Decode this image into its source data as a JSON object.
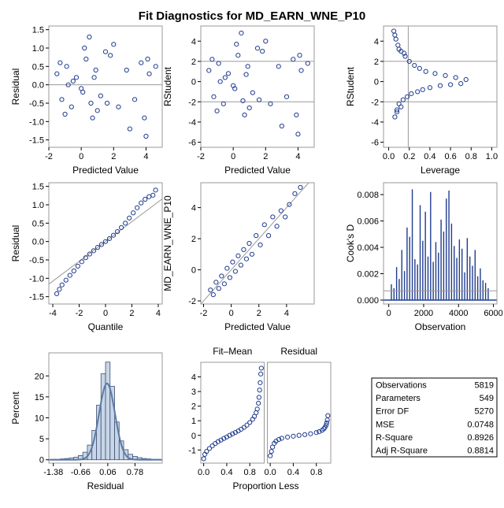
{
  "title": "Fit Diagnostics for MD_EARN_WNE_P10",
  "colors": {
    "marker": "#1f3c8f",
    "frame": "#9a9a9a",
    "bar": "#c9d6e8",
    "curve": "#5b7aa5"
  },
  "chart_data": [
    {
      "type": "scatter",
      "panel": "residual-vs-predicted",
      "xlabel": "Predicted Value",
      "ylabel": "Residual",
      "xlim": [
        -2,
        5
      ],
      "ylim": [
        -1.7,
        1.6
      ],
      "xticks": [
        -2,
        0,
        2,
        4
      ],
      "yticks": [
        -1.5,
        -1.0,
        -0.5,
        0.0,
        0.5,
        1.0,
        1.5
      ],
      "ytick_labels": [
        "-1.5",
        "-1.0",
        "-0.5",
        "0.0",
        "0.5",
        "1.0",
        "1.5"
      ],
      "reflines_y": [
        0
      ],
      "x": [
        -1.5,
        -1.2,
        -0.9,
        -0.6,
        -0.3,
        0.0,
        0.3,
        0.6,
        0.9,
        1.2,
        1.5,
        -1.0,
        -0.5,
        0.2,
        0.7,
        1.8,
        2.3,
        2.8,
        3.3,
        3.7,
        4.0,
        4.2,
        4.6,
        0.5,
        1.0,
        -0.8,
        0.1,
        2.0,
        3.0,
        3.9,
        4.1,
        -1.3,
        0.8,
        1.6
      ],
      "y": [
        0.3,
        -0.4,
        0.5,
        -0.6,
        0.2,
        -0.1,
        0.7,
        -0.5,
        0.4,
        -0.3,
        0.9,
        -0.8,
        0.1,
        1.0,
        -0.9,
        0.8,
        -0.6,
        0.4,
        -0.4,
        0.6,
        -1.4,
        0.3,
        0.5,
        1.3,
        -0.7,
        0.0,
        -0.2,
        1.1,
        -1.2,
        -0.9,
        0.7,
        0.6,
        0.2,
        -0.5
      ]
    },
    {
      "type": "scatter",
      "panel": "rstudent-vs-predicted",
      "xlabel": "Predicted Value",
      "ylabel": "RStudent",
      "xlim": [
        -2,
        5
      ],
      "ylim": [
        -6.5,
        5.5
      ],
      "xticks": [
        -2,
        0,
        2,
        4
      ],
      "yticks": [
        -6,
        -4,
        -2,
        0,
        2,
        4
      ],
      "ytick_labels": [
        "-6",
        "-4",
        "-2",
        "0",
        "2",
        "4"
      ],
      "reflines_y": [
        -2,
        2
      ],
      "x": [
        -1.5,
        -1.2,
        -0.9,
        -0.6,
        -0.3,
        0.0,
        0.3,
        0.6,
        0.9,
        1.2,
        1.5,
        -1.0,
        -0.5,
        0.2,
        0.7,
        1.8,
        2.3,
        2.8,
        3.3,
        3.7,
        4.0,
        4.2,
        4.6,
        0.5,
        1.0,
        -0.8,
        0.1,
        2.0,
        3.0,
        3.9,
        4.1,
        -1.3,
        0.8,
        1.6
      ],
      "y": [
        1.1,
        -1.5,
        1.8,
        -2.2,
        0.8,
        -0.4,
        2.6,
        -1.9,
        1.5,
        -1.1,
        3.3,
        -2.9,
        0.4,
        3.7,
        -3.3,
        3.0,
        -2.2,
        1.5,
        -1.5,
        2.2,
        -5.2,
        1.1,
        1.8,
        4.8,
        -2.6,
        0.0,
        -0.7,
        4.0,
        -4.4,
        -3.3,
        2.6,
        2.2,
        0.7,
        -1.8
      ]
    },
    {
      "type": "scatter",
      "panel": "rstudent-vs-leverage",
      "xlabel": "Leverage",
      "ylabel": "RStudent",
      "xlim": [
        -0.05,
        1.05
      ],
      "ylim": [
        -6.5,
        5.5
      ],
      "xticks": [
        0.0,
        0.2,
        0.4,
        0.6,
        0.8,
        1.0
      ],
      "yticks": [
        -6,
        -4,
        -2,
        0,
        2,
        4
      ],
      "xtick_labels": [
        "0.0",
        "0.2",
        "0.4",
        "0.6",
        "0.8",
        "1.0"
      ],
      "ytick_labels": [
        "-6",
        "-4",
        "-2",
        "0",
        "2",
        "4"
      ],
      "reflines_y": [
        -2,
        2
      ],
      "reflines_x": [
        0.19
      ],
      "x": [
        0.05,
        0.06,
        0.07,
        0.08,
        0.09,
        0.1,
        0.12,
        0.14,
        0.16,
        0.18,
        0.2,
        0.22,
        0.25,
        0.28,
        0.3,
        0.33,
        0.36,
        0.4,
        0.45,
        0.5,
        0.55,
        0.6,
        0.65,
        0.7,
        0.75,
        0.06,
        0.08,
        0.1,
        0.12,
        0.15
      ],
      "y": [
        5.0,
        -3.5,
        4.2,
        -2.8,
        3.6,
        -2.2,
        3.0,
        -1.8,
        2.5,
        -1.5,
        2.0,
        -1.2,
        1.6,
        -1.0,
        1.3,
        -0.8,
        1.0,
        -0.6,
        0.8,
        -0.4,
        0.6,
        -0.3,
        0.4,
        -0.2,
        0.2,
        4.6,
        -3.0,
        3.2,
        -2.5,
        2.8
      ]
    },
    {
      "type": "scatter",
      "panel": "residual-qq",
      "xlabel": "Quantile",
      "ylabel": "Residual",
      "xlim": [
        -4.3,
        4.3
      ],
      "ylim": [
        -1.7,
        1.6
      ],
      "xticks": [
        -4,
        -2,
        0,
        2,
        4
      ],
      "yticks": [
        -1.5,
        -1.0,
        -0.5,
        0.0,
        0.5,
        1.0,
        1.5
      ],
      "ytick_labels": [
        "-1.5",
        "-1.0",
        "-0.5",
        "0.0",
        "0.5",
        "1.0",
        "1.5"
      ],
      "refline_points": [
        [
          -4.3,
          -1.16
        ],
        [
          4.3,
          1.16
        ]
      ],
      "x": [
        -3.7,
        -3.5,
        -3.3,
        -3.0,
        -2.7,
        -2.4,
        -2.1,
        -1.8,
        -1.5,
        -1.2,
        -0.9,
        -0.6,
        -0.3,
        0.0,
        0.3,
        0.6,
        0.9,
        1.2,
        1.5,
        1.8,
        2.1,
        2.4,
        2.7,
        3.0,
        3.3,
        3.6,
        3.8
      ],
      "y": [
        -1.42,
        -1.3,
        -1.18,
        -1.05,
        -0.92,
        -0.8,
        -0.67,
        -0.55,
        -0.44,
        -0.34,
        -0.25,
        -0.16,
        -0.08,
        0.0,
        0.08,
        0.17,
        0.27,
        0.38,
        0.5,
        0.64,
        0.78,
        0.92,
        1.05,
        1.15,
        1.22,
        1.26,
        1.4
      ]
    },
    {
      "type": "scatter",
      "panel": "observed-vs-predicted",
      "xlabel": "Predicted Value",
      "ylabel": "MD_EARN_WNE_P10",
      "xlim": [
        -2.2,
        6
      ],
      "ylim": [
        -2.2,
        5.6
      ],
      "xticks": [
        -2,
        0,
        2,
        4
      ],
      "yticks": [
        -2,
        0,
        2,
        4
      ],
      "refline_points": [
        [
          -2.2,
          -2.2
        ],
        [
          5.6,
          5.6
        ]
      ],
      "x": [
        -1.5,
        -1.3,
        -1.1,
        -0.9,
        -0.7,
        -0.5,
        -0.3,
        -0.1,
        0.1,
        0.3,
        0.5,
        0.7,
        0.9,
        1.1,
        1.3,
        1.5,
        1.8,
        2.1,
        2.4,
        2.7,
        3.0,
        3.3,
        3.6,
        3.9,
        4.2,
        4.6,
        5.0
      ],
      "y": [
        -1.3,
        -1.6,
        -0.8,
        -1.2,
        -0.4,
        -0.9,
        0.1,
        -0.5,
        0.5,
        -0.1,
        0.9,
        0.3,
        1.3,
        0.7,
        1.7,
        1.0,
        2.2,
        1.6,
        2.9,
        2.2,
        3.4,
        2.8,
        3.8,
        3.4,
        4.2,
        4.9,
        5.3
      ]
    },
    {
      "type": "bar",
      "panel": "cooks-d",
      "xlabel": "Observation",
      "ylabel": "Cook's D",
      "xlim": [
        -300,
        6200
      ],
      "ylim": [
        -0.0003,
        0.0089
      ],
      "xticks": [
        0,
        2000,
        4000,
        6000
      ],
      "yticks": [
        0.0,
        0.002,
        0.004,
        0.006,
        0.008
      ],
      "ytick_labels": [
        "0.000",
        "0.002",
        "0.004",
        "0.006",
        "0.008"
      ],
      "reflines_y": [
        0.0007
      ],
      "x": [
        150,
        300,
        450,
        600,
        750,
        900,
        1050,
        1200,
        1350,
        1500,
        1650,
        1800,
        1950,
        2100,
        2250,
        2400,
        2550,
        2700,
        2850,
        3000,
        3150,
        3300,
        3450,
        3600,
        3750,
        3900,
        4050,
        4200,
        4350,
        4500,
        4650,
        4800,
        4950,
        5100,
        5250,
        5400,
        5550,
        5700
      ],
      "values": [
        0.0012,
        0.0009,
        0.0025,
        0.0016,
        0.0038,
        0.0022,
        0.0055,
        0.0048,
        0.0084,
        0.0031,
        0.0027,
        0.0072,
        0.0045,
        0.0067,
        0.0033,
        0.0082,
        0.0029,
        0.0044,
        0.0036,
        0.0061,
        0.0052,
        0.0077,
        0.0083,
        0.0058,
        0.0041,
        0.0032,
        0.0046,
        0.0039,
        0.0021,
        0.0047,
        0.0033,
        0.0026,
        0.0038,
        0.0018,
        0.0024,
        0.0015,
        0.0013,
        0.0009
      ]
    },
    {
      "type": "histogram",
      "panel": "residual-histogram",
      "xlabel": "Residual",
      "ylabel": "Percent",
      "xlim": [
        -1.5,
        1.5
      ],
      "ylim": [
        -0.8,
        25.5
      ],
      "xticks": [
        -1.38,
        -0.66,
        0.06,
        0.78
      ],
      "xtick_labels": [
        "-1.38",
        "-0.66",
        "0.06",
        "0.78"
      ],
      "yticks": [
        0,
        5,
        10,
        15,
        20
      ],
      "bin_width": 0.12,
      "bin_starts": [
        -1.44,
        -1.32,
        -1.2,
        -1.08,
        -0.96,
        -0.84,
        -0.72,
        -0.6,
        -0.48,
        -0.36,
        -0.24,
        -0.12,
        0.0,
        0.12,
        0.24,
        0.36,
        0.48,
        0.6,
        0.72,
        0.84,
        0.96,
        1.08,
        1.2,
        1.32
      ],
      "values": [
        0.1,
        0.1,
        0.2,
        0.3,
        0.4,
        0.6,
        1.0,
        1.8,
        3.5,
        7.0,
        13.0,
        20.5,
        23.3,
        17.5,
        9.0,
        4.5,
        2.4,
        1.3,
        0.8,
        0.5,
        0.3,
        0.2,
        0.1,
        0.1
      ],
      "curve_peak": 18.2,
      "curve_mean": 0.04,
      "curve_sd": 0.21
    },
    {
      "type": "line",
      "panel": "fit-mean-residual-spread",
      "xlabel": "Proportion Less",
      "headers": [
        "Fit–Mean",
        "Residual"
      ],
      "xlim": [
        -0.05,
        1.05
      ],
      "ylim": [
        -1.9,
        5.0
      ],
      "xticks": [
        0.0,
        0.4,
        0.8
      ],
      "yticks": [
        -1,
        0,
        1,
        2,
        3,
        4
      ],
      "xtick_labels": [
        "0.0",
        "0.4",
        "0.8"
      ],
      "series": [
        {
          "name": "Fit–Mean",
          "x": [
            0.0,
            0.02,
            0.05,
            0.1,
            0.15,
            0.2,
            0.25,
            0.3,
            0.35,
            0.4,
            0.45,
            0.5,
            0.55,
            0.6,
            0.65,
            0.7,
            0.75,
            0.8,
            0.85,
            0.88,
            0.91,
            0.93,
            0.95,
            0.96,
            0.97,
            0.98,
            0.99,
            1.0
          ],
          "y": [
            -1.6,
            -1.3,
            -1.1,
            -0.9,
            -0.72,
            -0.56,
            -0.43,
            -0.32,
            -0.21,
            -0.11,
            0.0,
            0.1,
            0.2,
            0.3,
            0.42,
            0.55,
            0.7,
            0.88,
            1.1,
            1.3,
            1.55,
            1.8,
            2.2,
            2.6,
            3.1,
            3.6,
            4.2,
            4.6
          ]
        },
        {
          "name": "Residual",
          "x": [
            0.0,
            0.02,
            0.04,
            0.07,
            0.1,
            0.15,
            0.2,
            0.3,
            0.4,
            0.5,
            0.6,
            0.7,
            0.8,
            0.85,
            0.9,
            0.93,
            0.95,
            0.97,
            0.98,
            0.99,
            1.0
          ],
          "y": [
            -1.4,
            -1.1,
            -0.8,
            -0.55,
            -0.4,
            -0.28,
            -0.2,
            -0.12,
            -0.06,
            0.0,
            0.05,
            0.11,
            0.19,
            0.25,
            0.35,
            0.45,
            0.55,
            0.7,
            0.85,
            1.05,
            1.35
          ]
        }
      ]
    },
    {
      "type": "table",
      "panel": "fit-statistics",
      "rows": [
        {
          "label": "Observations",
          "value": "5819"
        },
        {
          "label": "Parameters",
          "value": "549"
        },
        {
          "label": "Error DF",
          "value": "5270"
        },
        {
          "label": "MSE",
          "value": "0.0748"
        },
        {
          "label": "R-Square",
          "value": "0.8926"
        },
        {
          "label": "Adj R-Square",
          "value": "0.8814"
        }
      ]
    }
  ]
}
